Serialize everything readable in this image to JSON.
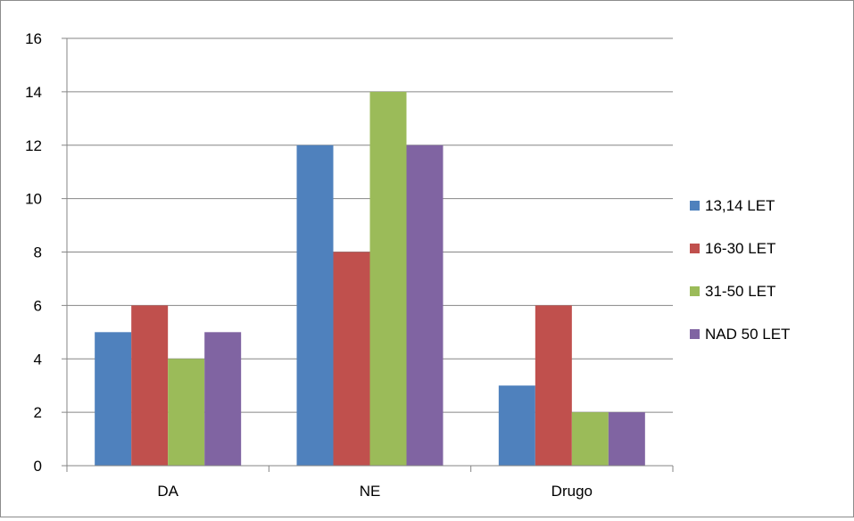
{
  "chart_data": {
    "type": "bar",
    "title": "",
    "xlabel": "",
    "ylabel": "",
    "categories": [
      "DA",
      "NE",
      "Drugo"
    ],
    "series": [
      {
        "name": "13,14 LET",
        "color": "#4f81bd",
        "values": [
          5,
          12,
          3
        ]
      },
      {
        "name": "16-30 LET",
        "color": "#c0504d",
        "values": [
          6,
          8,
          6
        ]
      },
      {
        "name": "31-50 LET",
        "color": "#9bbb59",
        "values": [
          4,
          14,
          2
        ]
      },
      {
        "name": "NAD 50 LET",
        "color": "#8064a2",
        "values": [
          5,
          12,
          2
        ]
      }
    ],
    "ylim": [
      0,
      16
    ],
    "yticks": [
      "0",
      "2",
      "4",
      "6",
      "8",
      "10",
      "12",
      "14",
      "16"
    ],
    "grid": true,
    "legend_position": "right"
  }
}
